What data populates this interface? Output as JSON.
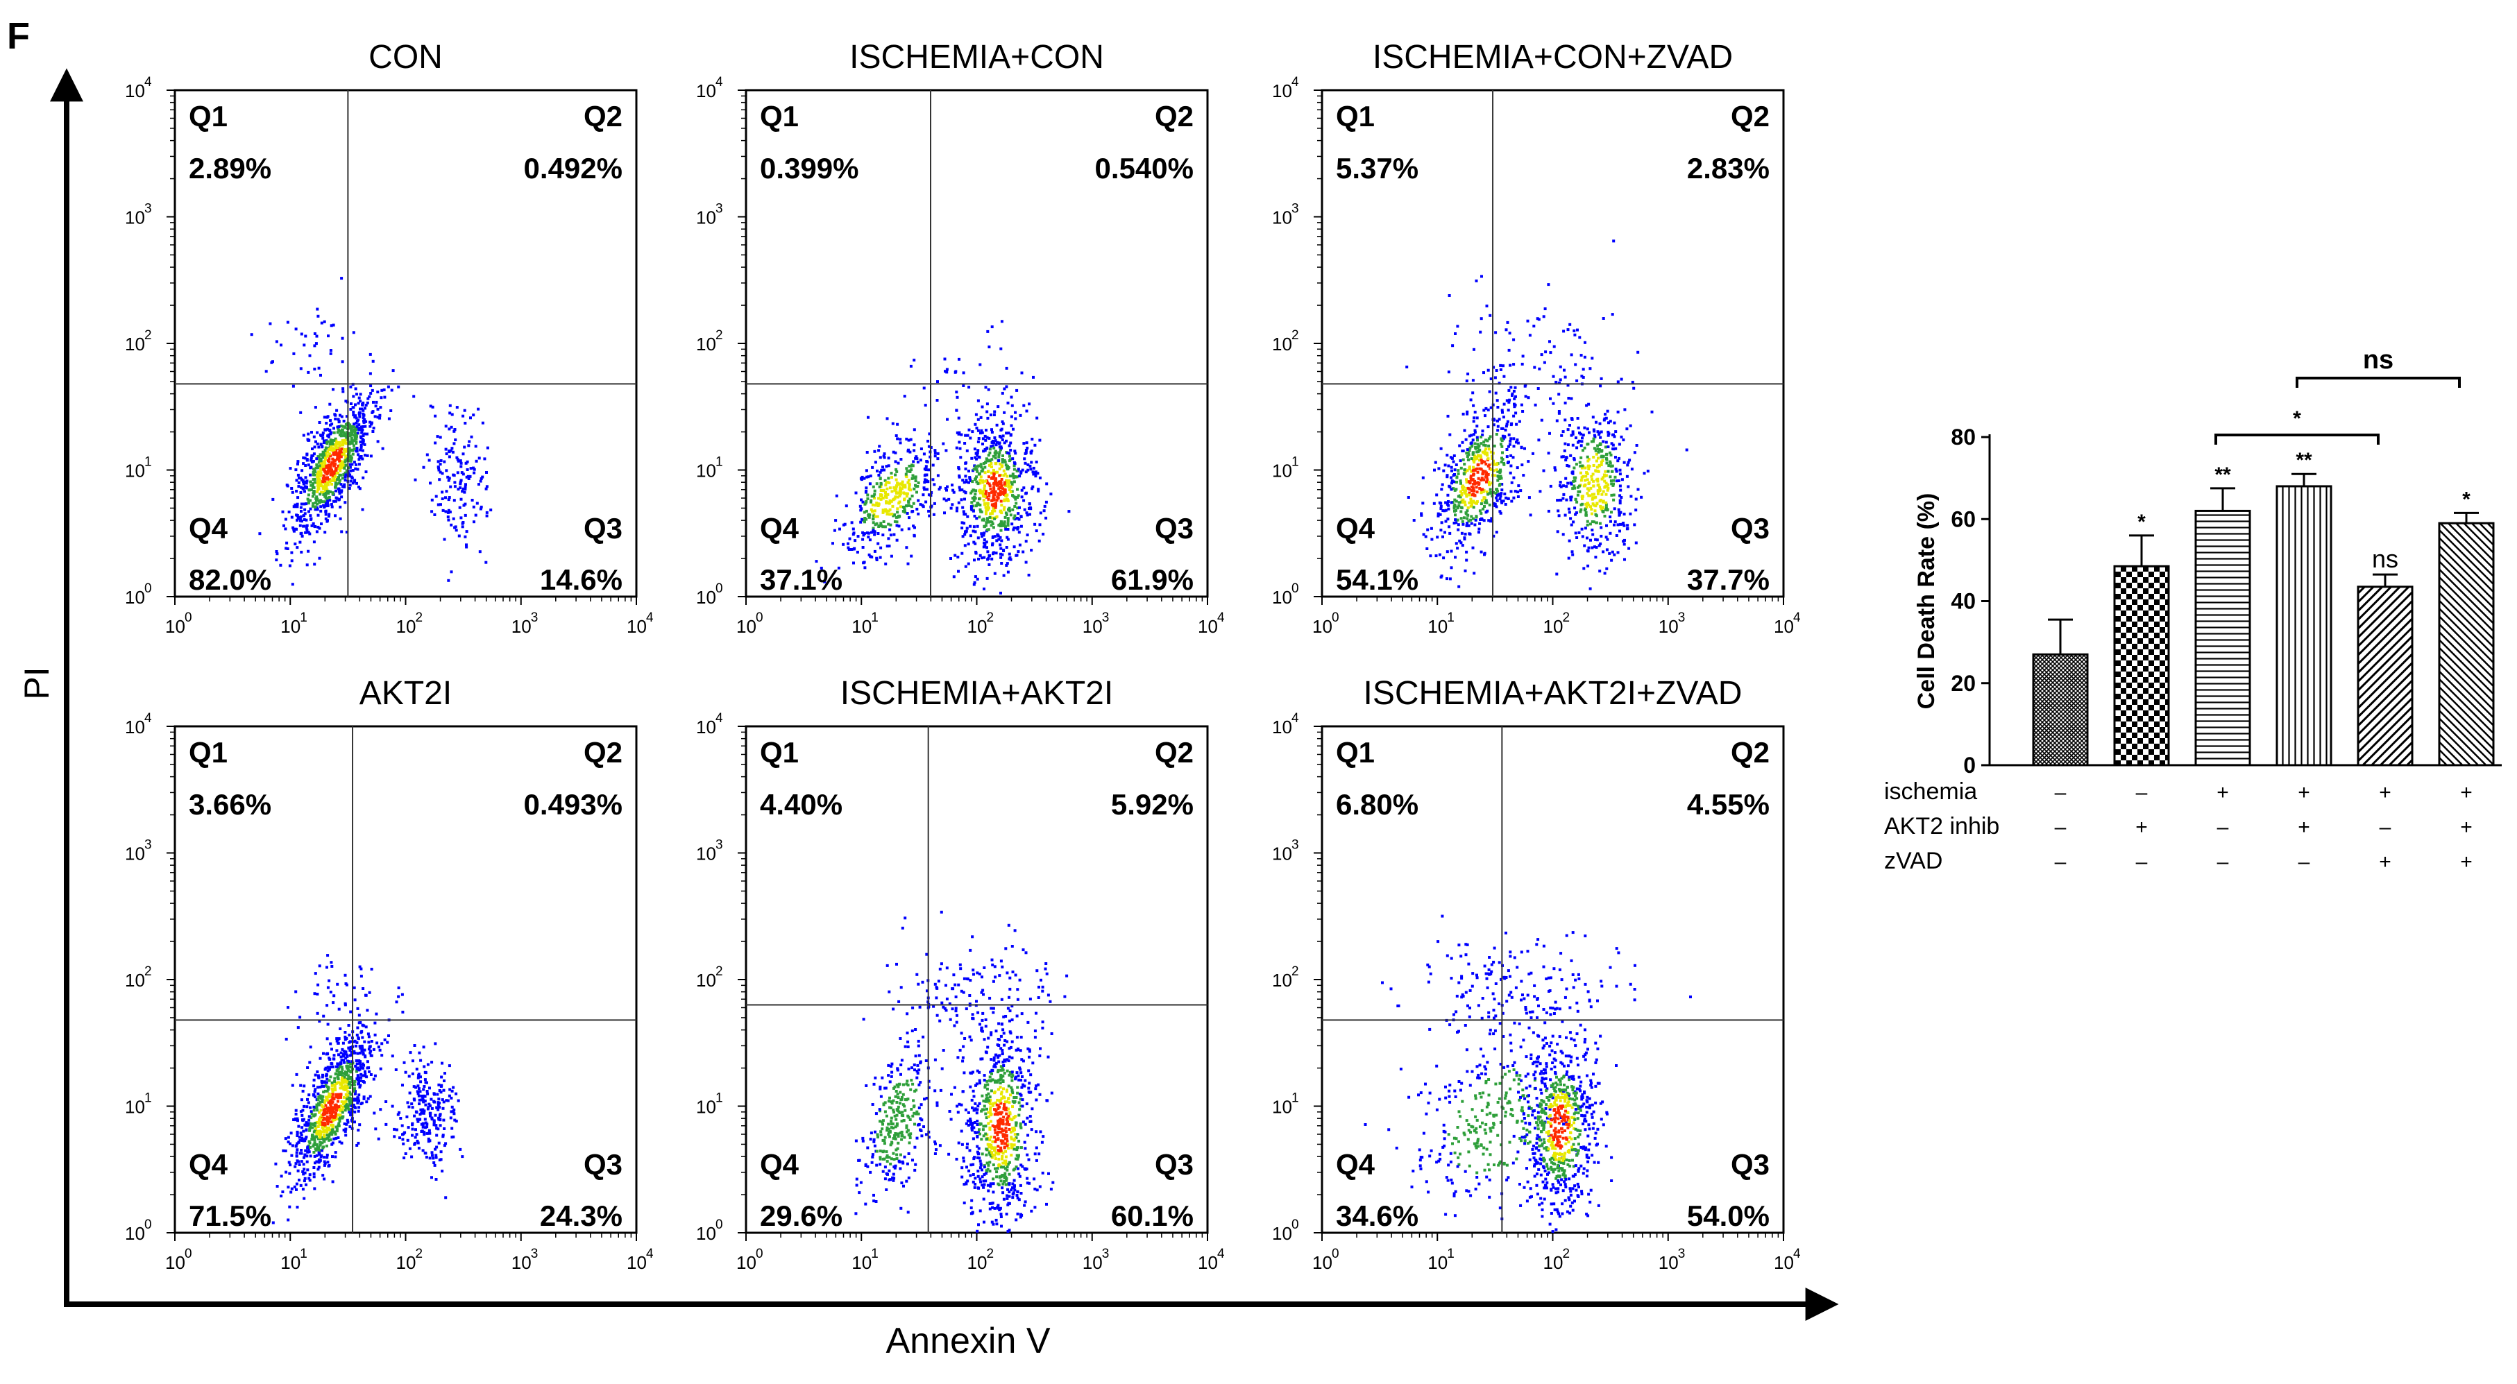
{
  "figure": {
    "panel_letter": "F",
    "y_axis_label": "PI",
    "x_axis_label": "Annexin V"
  },
  "tick_labels": [
    "10",
    "10",
    "10",
    "10",
    "10"
  ],
  "tick_exponents": [
    "0",
    "1",
    "2",
    "3",
    "4"
  ],
  "colors": {
    "axis": "#000000",
    "gate": "#333333",
    "dot_low": "#0000ff",
    "dot_mid": "#2e9f3a",
    "dot_high": "#e8e800",
    "dot_peak": "#ff2a00",
    "bar_fill": "#ffffff"
  },
  "chart_data": [
    {
      "type": "scatter",
      "subtype": "flow_cytometry_quadrant",
      "title": "CON",
      "x_axis": "Annexin V",
      "y_axis": "PI",
      "scale": "log",
      "range": [
        1,
        10000
      ],
      "quadrants": {
        "Q1": "2.89%",
        "Q2": "0.492%",
        "Q3": "14.6%",
        "Q4": "82.0%"
      },
      "quadrant_names": [
        "Q1",
        "Q2",
        "Q3",
        "Q4"
      ]
    },
    {
      "type": "scatter",
      "subtype": "flow_cytometry_quadrant",
      "title": "ISCHEMIA+CON",
      "x_axis": "Annexin V",
      "y_axis": "PI",
      "scale": "log",
      "range": [
        1,
        10000
      ],
      "quadrants": {
        "Q1": "0.399%",
        "Q2": "0.540%",
        "Q3": "61.9%",
        "Q4": "37.1%"
      },
      "quadrant_names": [
        "Q1",
        "Q2",
        "Q3",
        "Q4"
      ]
    },
    {
      "type": "scatter",
      "subtype": "flow_cytometry_quadrant",
      "title": "ISCHEMIA+CON+ZVAD",
      "x_axis": "Annexin V",
      "y_axis": "PI",
      "scale": "log",
      "range": [
        1,
        10000
      ],
      "quadrants": {
        "Q1": "5.37%",
        "Q2": "2.83%",
        "Q3": "37.7%",
        "Q4": "54.1%"
      },
      "quadrant_names": [
        "Q1",
        "Q2",
        "Q3",
        "Q4"
      ]
    },
    {
      "type": "scatter",
      "subtype": "flow_cytometry_quadrant",
      "title": "AKT2I",
      "x_axis": "Annexin V",
      "y_axis": "PI",
      "scale": "log",
      "range": [
        1,
        10000
      ],
      "quadrants": {
        "Q1": "3.66%",
        "Q2": "0.493%",
        "Q3": "24.3%",
        "Q4": "71.5%"
      },
      "quadrant_names": [
        "Q1",
        "Q2",
        "Q3",
        "Q4"
      ]
    },
    {
      "type": "scatter",
      "subtype": "flow_cytometry_quadrant",
      "title": "ISCHEMIA+AKT2I",
      "x_axis": "Annexin V",
      "y_axis": "PI",
      "scale": "log",
      "range": [
        1,
        10000
      ],
      "quadrants": {
        "Q1": "4.40%",
        "Q2": "5.92%",
        "Q3": "60.1%",
        "Q4": "29.6%"
      },
      "quadrant_names": [
        "Q1",
        "Q2",
        "Q3",
        "Q4"
      ]
    },
    {
      "type": "scatter",
      "subtype": "flow_cytometry_quadrant",
      "title": "ISCHEMIA+AKT2I+ZVAD",
      "x_axis": "Annexin V",
      "y_axis": "PI",
      "scale": "log",
      "range": [
        1,
        10000
      ],
      "quadrants": {
        "Q1": "6.80%",
        "Q2": "4.55%",
        "Q3": "54.0%",
        "Q4": "34.6%"
      },
      "quadrant_names": [
        "Q1",
        "Q2",
        "Q3",
        "Q4"
      ]
    },
    {
      "type": "bar",
      "title": "",
      "ylabel": "Cell Death Rate (%)",
      "ylim": [
        0,
        80
      ],
      "yticks": [
        0,
        20,
        40,
        60,
        80
      ],
      "values": [
        27,
        48.5,
        62,
        68,
        43.5,
        59
      ],
      "errors": [
        8.5,
        7.5,
        5.5,
        3,
        3,
        2.5
      ],
      "significance": [
        "",
        "*",
        "**",
        "**",
        "ns",
        "*"
      ],
      "patterns": [
        "dense-grid",
        "checker",
        "horizontal",
        "vertical",
        "diagonal",
        "diagonal-fine"
      ],
      "conditions": [
        {
          "label": "ischemia",
          "signs": [
            "–",
            "–",
            "+",
            "+",
            "+",
            "+"
          ]
        },
        {
          "label": "AKT2 inhib",
          "signs": [
            "–",
            "+",
            "–",
            "+",
            "–",
            "+"
          ]
        },
        {
          "label": "zVAD",
          "signs": [
            "–",
            "–",
            "–",
            "–",
            "+",
            "+"
          ]
        }
      ],
      "comparisons": [
        {
          "between": [
            3,
            5
          ],
          "label": "*"
        },
        {
          "between": [
            4,
            6
          ],
          "label": "ns"
        }
      ]
    }
  ]
}
